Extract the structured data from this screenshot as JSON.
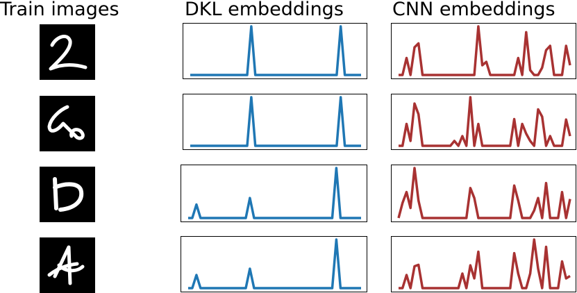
{
  "headers": {
    "train": "Train images",
    "dkl": "DKL embeddings",
    "cnn": "CNN embeddings"
  },
  "colors": {
    "dkl": "#1f77b4",
    "cnn": "#a83232",
    "digit_bg": "#000000",
    "digit_stroke": "#ffffff"
  },
  "images": [
    {
      "digit": "2",
      "icon": "handwritten-digit-2"
    },
    {
      "digit": "6",
      "icon": "handwritten-digit-6"
    },
    {
      "digit": "5",
      "icon": "handwritten-digit-5"
    },
    {
      "digit": "4",
      "icon": "handwritten-digit-4"
    }
  ],
  "chart_data": [
    {
      "type": "line",
      "title": "DKL embeddings",
      "row": 1,
      "ylim": [
        0,
        1
      ],
      "series": [
        {
          "values": [
            0,
            0,
            0,
            0,
            0,
            0,
            0,
            0,
            0,
            0,
            0,
            0,
            0,
            0,
            0,
            1,
            0,
            0,
            0,
            0,
            0,
            0,
            0,
            0,
            0,
            0,
            0,
            0,
            0,
            0,
            0,
            0,
            0,
            0,
            0,
            0,
            0,
            1,
            0,
            0,
            0,
            0,
            0
          ]
        }
      ]
    },
    {
      "type": "line",
      "title": "DKL embeddings",
      "row": 2,
      "ylim": [
        0,
        1
      ],
      "series": [
        {
          "values": [
            0,
            0,
            0,
            0,
            0,
            0,
            0,
            0,
            0,
            0,
            0,
            0,
            0,
            0,
            0,
            1,
            0,
            0,
            0,
            0,
            0,
            0,
            0,
            0,
            0,
            0,
            0,
            0,
            0,
            0,
            0,
            0,
            0,
            0,
            0,
            0,
            0,
            1,
            0,
            0,
            0,
            0,
            0
          ]
        }
      ]
    },
    {
      "type": "line",
      "title": "DKL embeddings",
      "row": 3,
      "ylim": [
        0,
        1
      ],
      "series": [
        {
          "values": [
            0,
            0,
            0.27,
            0,
            0,
            0,
            0,
            0,
            0,
            0,
            0,
            0,
            0,
            0,
            0,
            0.4,
            0,
            0,
            0,
            0,
            0,
            0,
            0,
            0,
            0,
            0,
            0,
            0,
            0,
            0,
            0,
            0,
            0,
            0,
            0,
            0,
            1,
            0,
            0,
            0,
            0,
            0,
            0
          ]
        }
      ]
    },
    {
      "type": "line",
      "title": "DKL embeddings",
      "row": 4,
      "ylim": [
        0,
        1
      ],
      "series": [
        {
          "values": [
            0,
            0,
            0.27,
            0,
            0,
            0,
            0,
            0,
            0,
            0,
            0,
            0,
            0,
            0,
            0,
            0.4,
            0,
            0,
            0,
            0,
            0,
            0,
            0,
            0,
            0,
            0,
            0,
            0,
            0,
            0,
            0,
            0,
            0,
            0,
            0,
            0,
            1,
            0,
            0,
            0,
            0,
            0,
            0
          ]
        }
      ]
    },
    {
      "type": "line",
      "title": "CNN embeddings",
      "row": 1,
      "ylim": [
        0,
        1
      ],
      "series": [
        {
          "values": [
            0,
            0,
            0.35,
            0,
            0.57,
            0.65,
            0,
            0,
            0,
            0,
            0,
            0,
            0,
            0,
            0,
            0,
            0,
            0,
            0,
            0,
            1,
            0.2,
            0.27,
            0,
            0,
            0,
            0,
            0,
            0,
            0,
            0.35,
            0,
            0.88,
            0.1,
            0,
            0,
            0.15,
            0.51,
            0.6,
            0,
            0,
            0,
            0.6,
            0.2
          ]
        }
      ]
    },
    {
      "type": "line",
      "title": "CNN embeddings",
      "row": 2,
      "ylim": [
        0,
        1
      ],
      "series": [
        {
          "values": [
            0,
            0,
            0.45,
            0.1,
            0.87,
            0.65,
            0,
            0,
            0,
            0,
            0,
            0,
            0,
            0,
            0.1,
            0,
            0.2,
            0,
            1,
            0,
            0.45,
            0,
            0,
            0,
            0,
            0,
            0,
            0,
            0,
            0.55,
            0,
            0.45,
            0.25,
            0.1,
            0,
            0.75,
            0.6,
            0,
            0.2,
            0,
            0,
            0,
            0.54,
            0.2
          ]
        }
      ]
    },
    {
      "type": "line",
      "title": "CNN embeddings",
      "row": 3,
      "ylim": [
        0,
        1
      ],
      "series": [
        {
          "values": [
            0,
            0.3,
            0.52,
            0.2,
            1,
            0.35,
            0,
            0,
            0,
            0,
            0,
            0,
            0,
            0,
            0,
            0,
            0,
            0,
            0.6,
            0.4,
            0,
            0,
            0,
            0,
            0,
            0,
            0,
            0,
            0,
            0.65,
            0.35,
            0,
            0,
            0,
            0.15,
            0.4,
            0,
            0.7,
            0,
            0,
            0,
            0.52,
            0,
            0.38
          ]
        }
      ]
    },
    {
      "type": "line",
      "title": "CNN embeddings",
      "row": 4,
      "ylim": [
        0,
        1
      ],
      "series": [
        {
          "values": [
            0,
            0,
            0.27,
            0,
            0.45,
            0.48,
            0,
            0,
            0,
            0,
            0,
            0,
            0,
            0,
            0,
            0,
            0.3,
            0,
            0.47,
            0.2,
            0.75,
            0,
            0,
            0,
            0,
            0,
            0,
            0,
            0,
            0.72,
            0.3,
            0,
            0,
            0.3,
            1,
            0.4,
            0,
            0.85,
            0,
            0,
            0,
            0.55,
            0.2,
            0.25
          ]
        }
      ]
    }
  ]
}
